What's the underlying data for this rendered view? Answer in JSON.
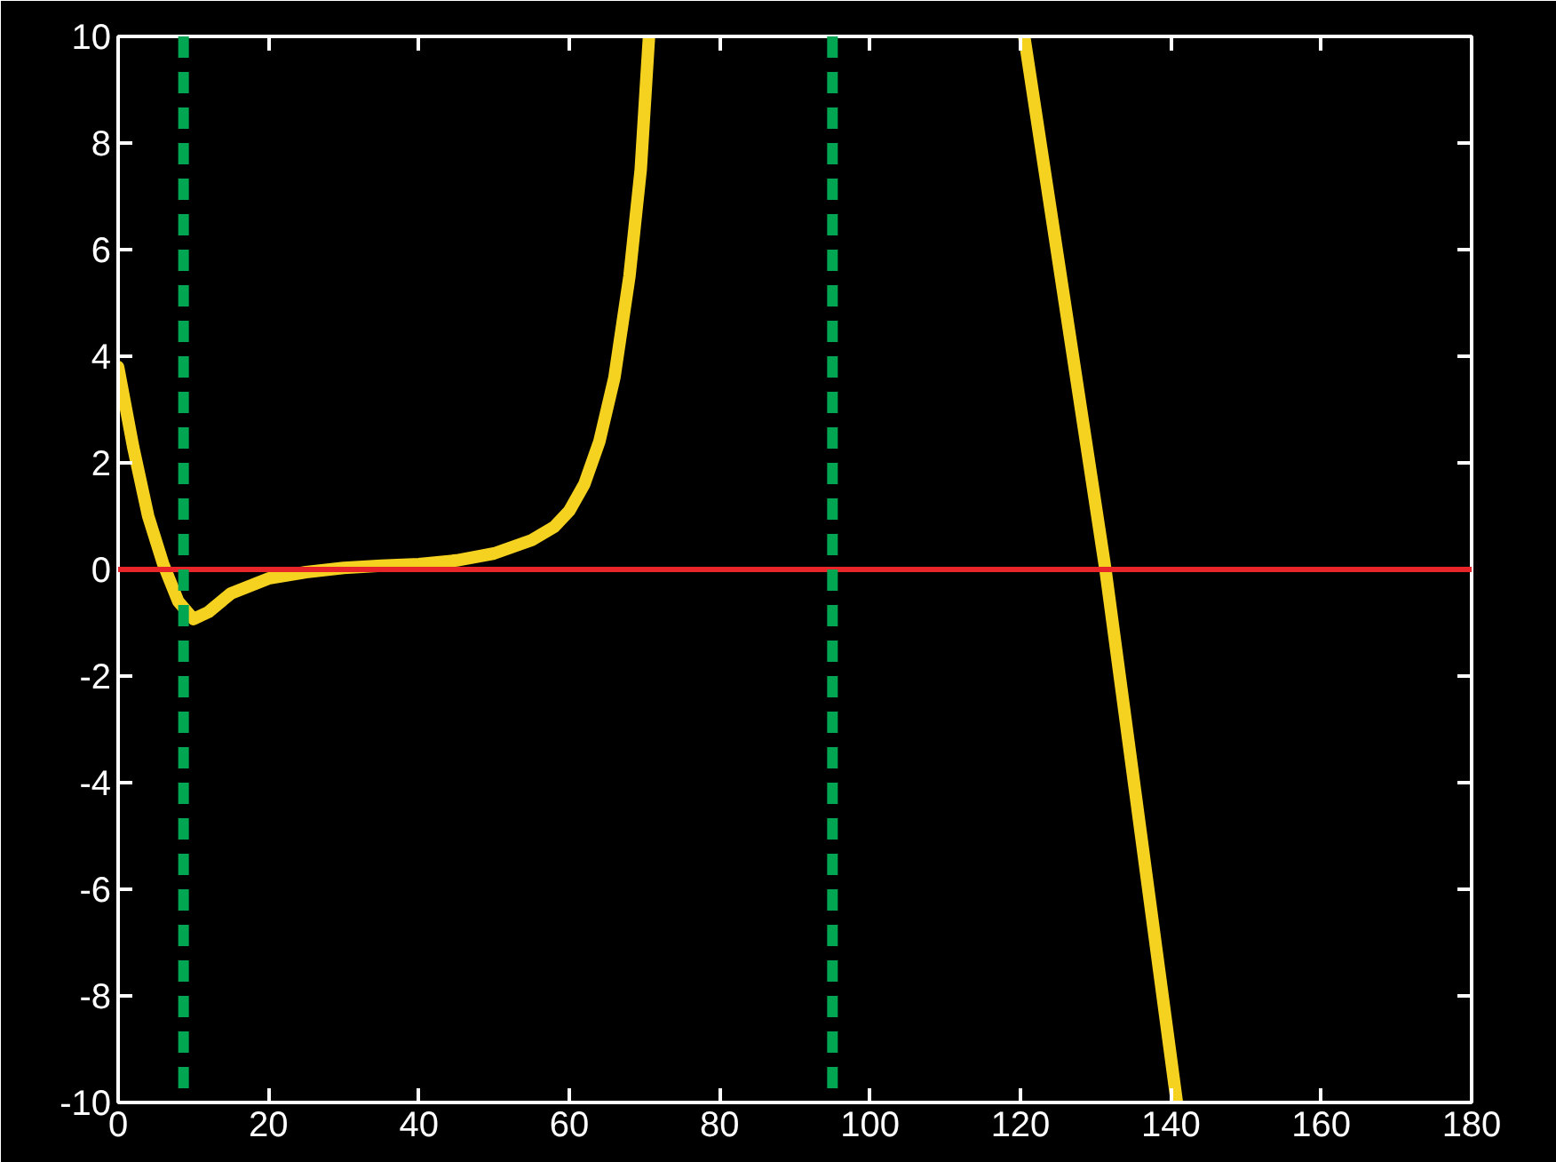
{
  "chart_data": {
    "type": "line",
    "x": [
      0,
      2,
      4,
      6,
      8,
      10,
      12,
      15,
      20,
      25,
      30,
      35,
      40,
      45,
      50,
      55,
      58,
      60,
      62,
      64,
      66,
      68,
      69.5,
      70.6,
      95,
      120.5,
      131.3,
      140.8
    ],
    "series": [
      {
        "color": "#f5d21f",
        "values": [
          3.8,
          2.3,
          1.0,
          0.1,
          -0.6,
          -0.93,
          -0.8,
          -0.45,
          -0.17,
          -0.05,
          0.03,
          0.07,
          0.1,
          0.17,
          0.3,
          0.55,
          0.8,
          1.1,
          1.6,
          2.4,
          3.6,
          5.5,
          7.5,
          10,
          null,
          10,
          0,
          -10
        ]
      }
    ],
    "xlim": [
      0,
      180
    ],
    "xticks": [
      0,
      20,
      40,
      60,
      80,
      100,
      120,
      140,
      160,
      180
    ],
    "ylim": [
      -10,
      10
    ],
    "yticks": [
      -10,
      -8,
      -6,
      -4,
      -2,
      0,
      2,
      4,
      6,
      8,
      10
    ],
    "ref_lines": [
      {
        "axis": "y",
        "value": 0,
        "color": "#e8262a",
        "line_style": "solid"
      },
      {
        "axis": "x",
        "value": 8.7,
        "color": "#00a651",
        "line_style": "dashed"
      },
      {
        "axis": "x",
        "value": 95,
        "color": "#00a651",
        "line_style": "dashed"
      }
    ],
    "grid": false,
    "marker": "none",
    "line_style": "solid"
  }
}
